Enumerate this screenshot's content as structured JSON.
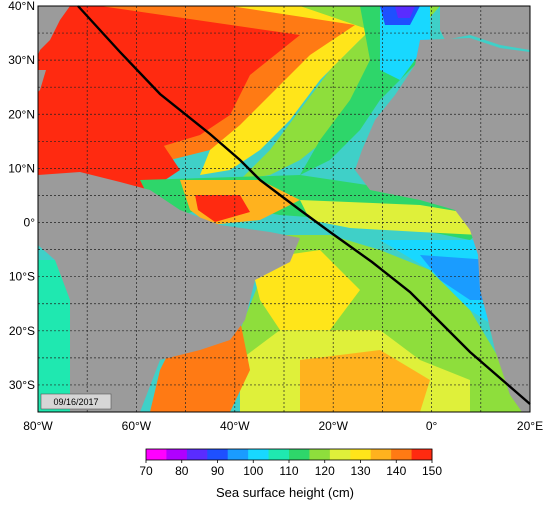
{
  "map": {
    "date_label": "09/16/2017",
    "lat_labels": [
      "40°N",
      "30°N",
      "20°N",
      "10°N",
      "0°",
      "10°S",
      "20°S",
      "30°S"
    ],
    "lon_labels": [
      "80°W",
      "60°W",
      "40°W",
      "20°W",
      "0°",
      "20°E"
    ],
    "lat_range": [
      -35,
      40
    ],
    "lon_range": [
      -80,
      20
    ],
    "colors": {
      "land": "#9b9b9b",
      "track": "#000000",
      "grid": "#222222"
    }
  },
  "colorbar": {
    "title": "Sea surface height (cm)",
    "ticks": [
      "70",
      "80",
      "90",
      "100",
      "110",
      "120",
      "130",
      "140",
      "150"
    ],
    "scale": [
      "#ff00ff",
      "#b000ff",
      "#5a2cff",
      "#1e50ff",
      "#1a9cff",
      "#18d8ff",
      "#1fe8b0",
      "#2ed66a",
      "#8ede3c",
      "#dff03a",
      "#ffe51a",
      "#ffb21e",
      "#ff7a14",
      "#ff2a10"
    ]
  }
}
